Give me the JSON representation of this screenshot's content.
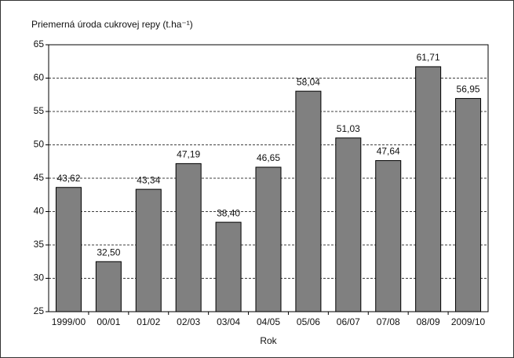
{
  "chart_data": {
    "type": "bar",
    "title": "Priemerná úroda cukrovej repy (t.ha⁻¹)",
    "x_label": "Rok",
    "categories": [
      "1999/00",
      "00/01",
      "01/02",
      "02/03",
      "03/04",
      "04/05",
      "05/06",
      "06/07",
      "07/08",
      "08/09",
      "2009/10"
    ],
    "values": [
      43.62,
      32.5,
      43.34,
      47.19,
      38.4,
      46.65,
      58.04,
      51.03,
      47.64,
      61.71,
      56.95
    ],
    "value_labels": [
      "43,62",
      "32,50",
      "43,34",
      "47,19",
      "38,40",
      "46,65",
      "58,04",
      "51,03",
      "47,64",
      "61,71",
      "56,95"
    ],
    "color": "#808080",
    "ylim": [
      25,
      65
    ],
    "yticks": [
      25,
      30,
      35,
      40,
      45,
      50,
      55,
      60,
      65
    ],
    "grid": true
  }
}
